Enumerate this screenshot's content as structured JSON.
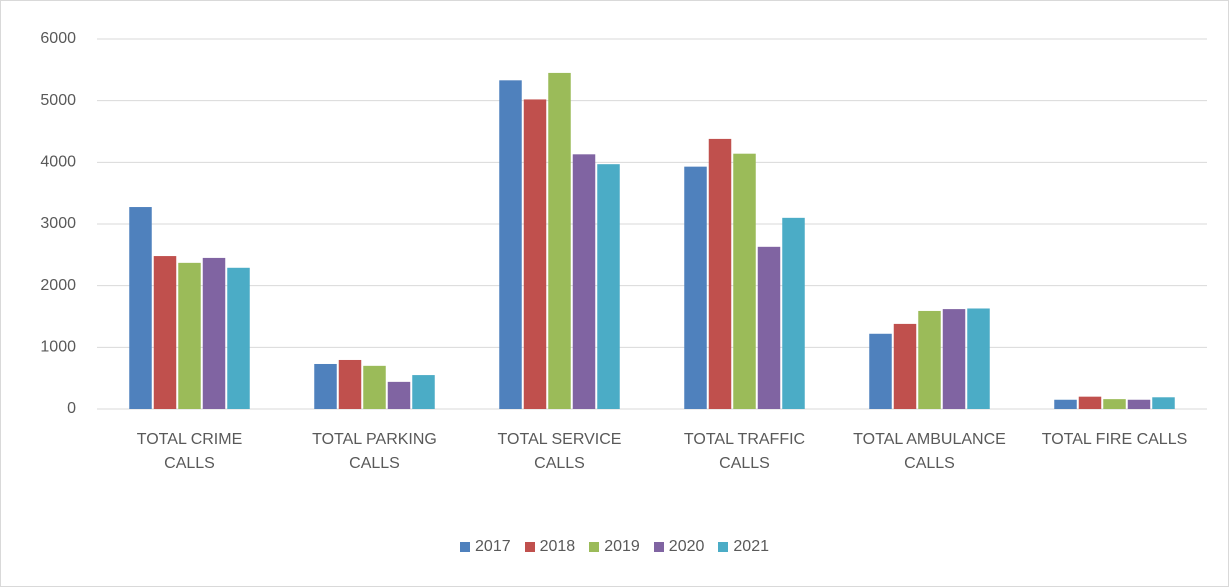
{
  "chart_data": {
    "type": "bar",
    "categories": [
      "TOTAL CRIME CALLS",
      "TOTAL PARKING CALLS",
      "TOTAL SERVICE CALLS",
      "TOTAL TRAFFIC CALLS",
      "TOTAL AMBULANCE CALLS",
      "TOTAL FIRE CALLS"
    ],
    "series": [
      {
        "name": "2017",
        "color": "#4f81bd",
        "values": [
          3275,
          730,
          5330,
          3930,
          1220,
          150
        ]
      },
      {
        "name": "2018",
        "color": "#c0504d",
        "values": [
          2480,
          795,
          5020,
          4380,
          1380,
          200
        ]
      },
      {
        "name": "2019",
        "color": "#9bbb59",
        "values": [
          2370,
          700,
          5450,
          4140,
          1590,
          160
        ]
      },
      {
        "name": "2020",
        "color": "#8064a2",
        "values": [
          2450,
          440,
          4130,
          2630,
          1620,
          150
        ]
      },
      {
        "name": "2021",
        "color": "#4bacc6",
        "values": [
          2290,
          550,
          3970,
          3100,
          1630,
          190
        ]
      }
    ],
    "ylim": [
      0,
      6000
    ],
    "yticks": [
      0,
      1000,
      2000,
      3000,
      4000,
      5000,
      6000
    ],
    "grid": true,
    "legend": "bottom"
  }
}
